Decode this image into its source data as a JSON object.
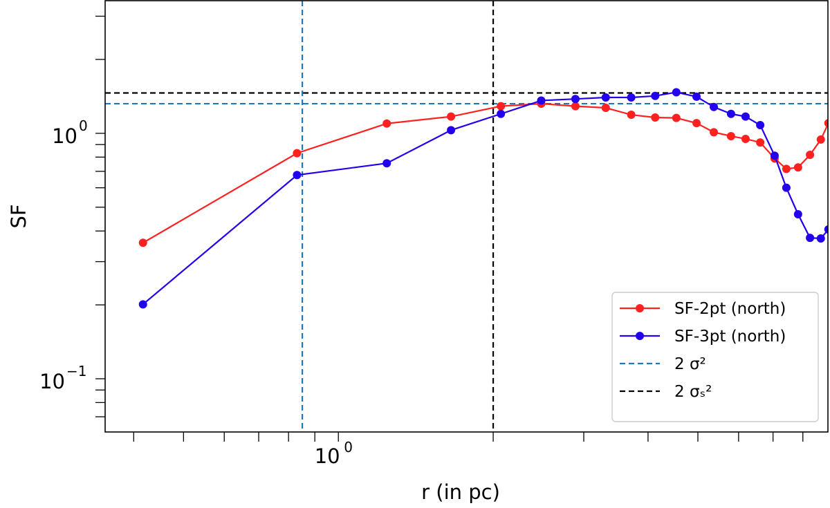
{
  "chart_data": {
    "type": "line",
    "title": "",
    "xlabel": "r (in pc)",
    "ylabel": "SF",
    "xscale": "log",
    "yscale": "log",
    "xlim": [
      0.352,
      8.95
    ],
    "ylim": [
      0.0607,
      3.47
    ],
    "grid": false,
    "legend_position": "bottom-right",
    "x_tick_labels": [
      {
        "value": 1,
        "base": "10",
        "exp": "0"
      }
    ],
    "y_tick_labels": [
      {
        "value": 1,
        "base": "10",
        "exp": "0"
      },
      {
        "value": 0.1,
        "base": "10",
        "exp": "−1"
      }
    ],
    "x_minor_ticks": [
      0.4,
      0.5,
      0.6,
      0.7,
      0.8,
      0.9,
      2,
      3,
      4,
      5,
      6,
      7,
      8
    ],
    "y_minor_ticks": [
      0.07,
      0.08,
      0.09,
      0.2,
      0.3,
      0.4,
      0.5,
      0.6,
      0.7,
      0.8,
      0.9,
      2,
      3
    ],
    "x": [
      0.417,
      0.831,
      1.242,
      1.656,
      2.07,
      2.48,
      2.89,
      3.31,
      3.71,
      4.13,
      4.54,
      4.97,
      5.37,
      5.8,
      6.19,
      6.61,
      7.05,
      7.43,
      7.83,
      8.26,
      8.67,
      8.97
    ],
    "series": [
      {
        "name": "SF-2pt (north)",
        "color": "#ff2020",
        "marker": "circle",
        "values": [
          0.358,
          0.83,
          1.096,
          1.17,
          1.29,
          1.32,
          1.29,
          1.27,
          1.19,
          1.16,
          1.155,
          1.1,
          1.01,
          0.974,
          0.949,
          0.918,
          0.79,
          0.716,
          0.726,
          0.817,
          0.943,
          1.1
        ]
      },
      {
        "name": "SF-3pt (north)",
        "color": "#2200ee",
        "marker": "circle",
        "values": [
          0.201,
          0.676,
          0.755,
          1.03,
          1.2,
          1.36,
          1.38,
          1.4,
          1.4,
          1.42,
          1.47,
          1.41,
          1.28,
          1.2,
          1.17,
          1.08,
          0.811,
          0.6,
          0.468,
          0.375,
          0.373,
          0.406
        ]
      }
    ],
    "reference_lines": [
      {
        "name": "2 σ²",
        "color": "#1f77b4",
        "style": "dashed",
        "orientation": "horizontal",
        "value": 1.32
      },
      {
        "name": "2 σₛ²",
        "color": "#000000",
        "style": "dashed",
        "orientation": "horizontal",
        "value": 1.46
      },
      {
        "color": "#1f77b4",
        "style": "dashed",
        "orientation": "vertical",
        "value": 0.851
      },
      {
        "color": "#000000",
        "style": "dashed",
        "orientation": "vertical",
        "value": 2.0
      }
    ],
    "legend": [
      {
        "label": "SF-2pt (north)",
        "color": "#ff2020",
        "style": "solid-marker"
      },
      {
        "label": "SF-3pt (north)",
        "color": "#2200ee",
        "style": "solid-marker"
      },
      {
        "label": "2 σ²",
        "color": "#1f77b4",
        "style": "dashed"
      },
      {
        "label": "2 σₛ²",
        "color": "#000000",
        "style": "dashed"
      }
    ]
  }
}
